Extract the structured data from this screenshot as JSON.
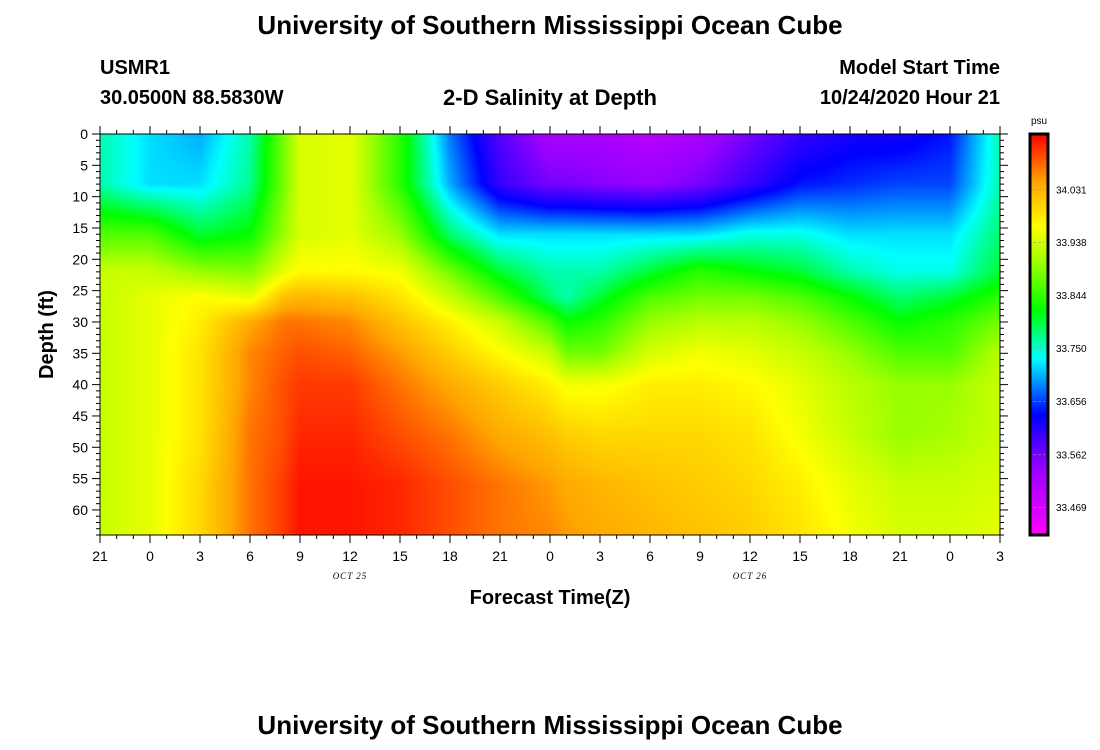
{
  "page": {
    "title_top": "University of Southern Mississippi Ocean Cube",
    "title_bottom": "University of Southern Mississippi Ocean Cube",
    "station_id": "USMR1",
    "station_coords": "30.0500N 88.5830W",
    "plot_title": "2-D Salinity at Depth",
    "model_start_label": "Model Start Time",
    "model_start_value": "10/24/2020 Hour 21"
  },
  "chart_data": {
    "type": "heatmap",
    "title": "2-D Salinity at Depth",
    "xlabel": "Forecast Time(Z)",
    "ylabel": "Depth (ft)",
    "x_hours": [
      0,
      3,
      6,
      9,
      12,
      15,
      18,
      21,
      24,
      27,
      30,
      33,
      36,
      39,
      42,
      45,
      48,
      51,
      54
    ],
    "x_tick_labels": [
      "21",
      "0",
      "3",
      "6",
      "9",
      "12",
      "15",
      "18",
      "21",
      "0",
      "3",
      "6",
      "9",
      "12",
      "15",
      "18",
      "21",
      "0",
      "3"
    ],
    "date_labels": [
      {
        "hour": 15,
        "text": "OCT 25"
      },
      {
        "hour": 39,
        "text": "OCT 26"
      }
    ],
    "y_ticks": [
      0,
      5,
      10,
      15,
      20,
      25,
      30,
      35,
      40,
      45,
      50,
      55,
      60
    ],
    "xlim": [
      0,
      54
    ],
    "ylim": [
      0,
      64
    ],
    "colorbar": {
      "unit": "psu",
      "min": 33.42,
      "max": 34.13,
      "tick_labels": [
        "34.031",
        "33.938",
        "33.844",
        "33.750",
        "33.656",
        "33.562",
        "33.469"
      ],
      "tick_values": [
        34.031,
        33.938,
        33.844,
        33.75,
        33.656,
        33.562,
        33.469
      ]
    },
    "grid_depths": [
      0,
      8,
      16,
      22,
      26,
      30,
      35,
      40,
      48,
      56,
      64
    ],
    "grid_hours": [
      0,
      3,
      6,
      9,
      11,
      12,
      15,
      18,
      21,
      24,
      27,
      28,
      30,
      33,
      36,
      39,
      42,
      45,
      48,
      51,
      54
    ],
    "values": [
      [
        33.76,
        33.72,
        33.7,
        33.76,
        33.88,
        33.94,
        33.95,
        33.84,
        33.68,
        33.58,
        33.52,
        33.52,
        33.52,
        33.5,
        33.52,
        33.56,
        33.6,
        33.62,
        33.62,
        33.64,
        33.76
      ],
      [
        33.76,
        33.72,
        33.72,
        33.77,
        33.88,
        33.94,
        33.95,
        33.84,
        33.7,
        33.6,
        33.56,
        33.56,
        33.55,
        33.54,
        33.56,
        33.6,
        33.64,
        33.65,
        33.66,
        33.66,
        33.76
      ],
      [
        33.86,
        33.86,
        33.8,
        33.82,
        33.9,
        33.94,
        33.95,
        33.9,
        33.78,
        33.72,
        33.72,
        33.72,
        33.72,
        33.72,
        33.72,
        33.74,
        33.74,
        33.72,
        33.72,
        33.72,
        33.78
      ],
      [
        33.93,
        33.93,
        33.9,
        33.89,
        33.95,
        33.97,
        33.97,
        33.96,
        33.88,
        33.8,
        33.76,
        33.76,
        33.76,
        33.8,
        33.84,
        33.82,
        33.8,
        33.76,
        33.74,
        33.74,
        33.8
      ],
      [
        33.93,
        33.95,
        33.97,
        33.95,
        34.02,
        34.03,
        34.02,
        33.99,
        33.93,
        33.86,
        33.78,
        33.76,
        33.8,
        33.86,
        33.88,
        33.88,
        33.86,
        33.82,
        33.78,
        33.8,
        33.84
      ],
      [
        33.93,
        33.95,
        33.98,
        34.04,
        34.07,
        34.07,
        34.06,
        34.02,
        33.98,
        33.93,
        33.86,
        33.82,
        33.84,
        33.9,
        33.92,
        33.92,
        33.9,
        33.86,
        33.82,
        33.84,
        33.88
      ],
      [
        33.93,
        33.95,
        33.99,
        34.06,
        34.08,
        34.09,
        34.08,
        34.05,
        34.01,
        33.97,
        33.93,
        33.88,
        33.88,
        33.94,
        33.96,
        33.95,
        33.93,
        33.9,
        33.86,
        33.86,
        33.92
      ],
      [
        33.93,
        33.95,
        33.99,
        34.06,
        34.09,
        34.1,
        34.1,
        34.07,
        34.04,
        34.01,
        33.98,
        33.96,
        33.96,
        33.98,
        33.98,
        33.97,
        33.95,
        33.92,
        33.9,
        33.9,
        33.93
      ],
      [
        33.93,
        33.95,
        33.99,
        34.07,
        34.09,
        34.11,
        34.11,
        34.09,
        34.07,
        34.04,
        34.02,
        34.01,
        34.0,
        34.0,
        34.0,
        33.99,
        33.96,
        33.93,
        33.9,
        33.91,
        33.93
      ],
      [
        33.93,
        33.95,
        34.0,
        34.07,
        34.1,
        34.12,
        34.12,
        34.11,
        34.09,
        34.07,
        34.05,
        34.04,
        34.03,
        34.02,
        34.01,
        34.0,
        33.98,
        33.95,
        33.93,
        33.93,
        33.94
      ],
      [
        33.93,
        33.95,
        34.0,
        34.07,
        34.1,
        34.12,
        34.12,
        34.11,
        34.09,
        34.07,
        34.06,
        34.05,
        34.04,
        34.03,
        34.02,
        34.01,
        33.99,
        33.96,
        33.94,
        33.94,
        33.95
      ]
    ]
  }
}
